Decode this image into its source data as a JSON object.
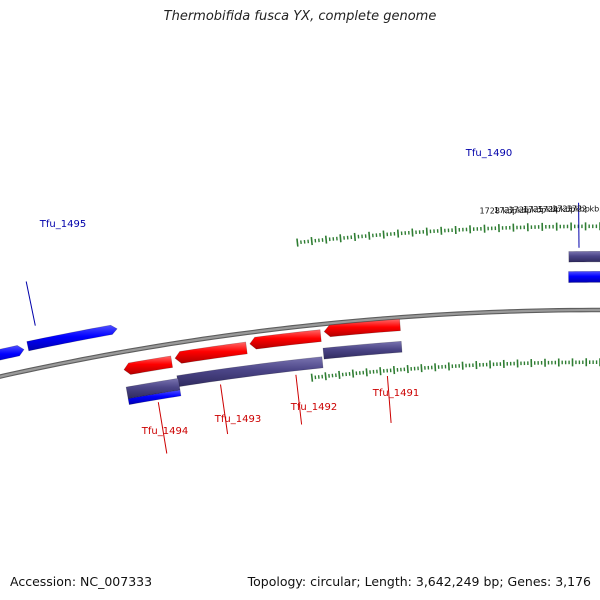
{
  "title": "Thermobifida fusca YX, complete genome",
  "footer": {
    "accession": "Accession: NC_007333",
    "topology": "Topology: circular; Length: 3,642,249 bp; Genes: 3,176"
  },
  "colors": {
    "backbone": "#808080",
    "tick": "#2e7d32",
    "gene_forward": "#0000ff",
    "gene_reverse": "#ff0000",
    "cds": "#4b4587",
    "label_forward": "#0000aa",
    "label_reverse": "#cc0000"
  },
  "tick_labels": [
    {
      "text": "1722 kbp"
    },
    {
      "text": "1723 kbp"
    },
    {
      "text": "1724 kbp"
    },
    {
      "text": "1725 kbp"
    },
    {
      "text": "1726 kbp"
    },
    {
      "text": "1727 kbp"
    },
    {
      "text": "1728 kbp"
    }
  ],
  "gene_labels": [
    {
      "text": "Tfu_1490",
      "strand": "forward"
    },
    {
      "text": "Tfu_1495",
      "strand": "forward"
    },
    {
      "text": "Tfu_1491",
      "strand": "reverse"
    },
    {
      "text": "Tfu_1492",
      "strand": "reverse"
    },
    {
      "text": "Tfu_1493",
      "strand": "reverse"
    },
    {
      "text": "Tfu_1494",
      "strand": "reverse"
    }
  ]
}
